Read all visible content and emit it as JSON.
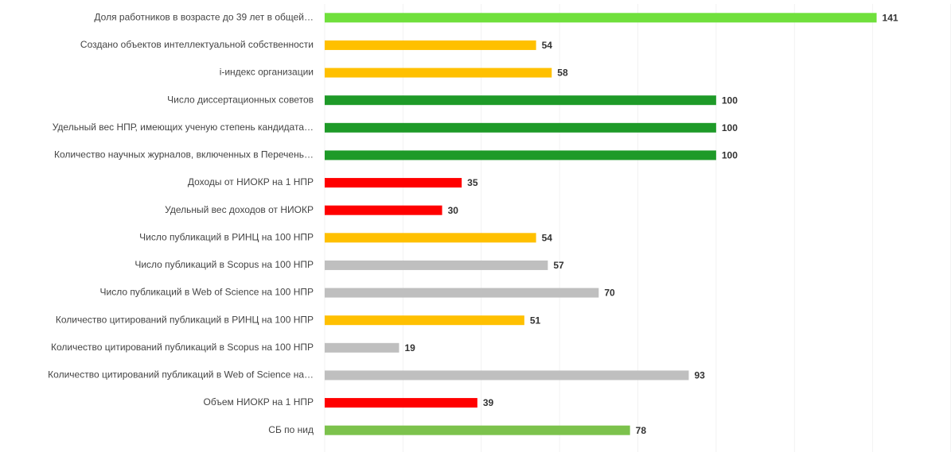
{
  "chart_data": {
    "type": "barh",
    "categories": [
      "Доля работников в возрасте до 39 лет в общей…",
      "Создано объектов интеллектуальной собственности",
      "i-индекс организации",
      "Число диссертационных советов",
      "Удельный вес НПР, имеющих ученую степень кандидата…",
      "Количество научных журналов, включенных в Перечень…",
      "Доходы от НИОКР на 1 НПР",
      "Удельный вес доходов от НИОКР",
      "Число публикаций в РИНЦ на 100 НПР",
      "Число публикаций в Scopus на 100 НПР",
      "Число публикаций в Web of Science на 100 НПР",
      "Количество цитирований публикаций в РИНЦ на 100 НПР",
      "Количество цитирований публикаций в Scopus на 100 НПР",
      "Количество цитирований публикаций в Web of Science на…",
      "Объем НИОКР на 1 НПР",
      "СБ по нид"
    ],
    "values": [
      141,
      54,
      58,
      100,
      100,
      100,
      35,
      30,
      54,
      57,
      70,
      51,
      19,
      93,
      39,
      78
    ],
    "colors": [
      "#70e03c",
      "#ffc000",
      "#ffc000",
      "#1e9a28",
      "#1e9a28",
      "#1e9a28",
      "#ff0000",
      "#ff0000",
      "#ffc000",
      "#bfbfbf",
      "#bfbfbf",
      "#ffc000",
      "#bfbfbf",
      "#bfbfbf",
      "#ff0000",
      "#7cc24c"
    ],
    "xlim": [
      0,
      160
    ],
    "xticks": [
      0,
      20,
      40,
      60,
      80,
      100,
      120,
      140,
      160
    ],
    "grid": true
  }
}
